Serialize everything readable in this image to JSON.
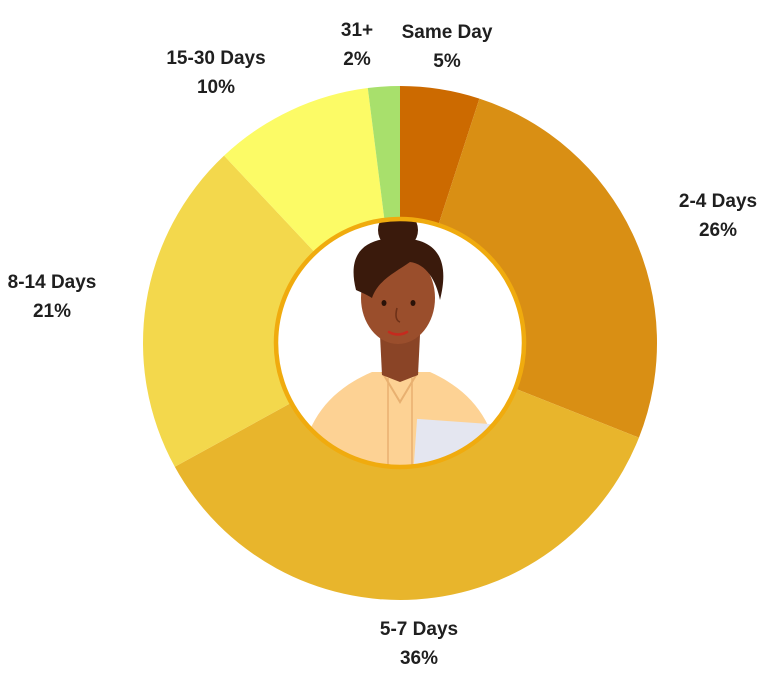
{
  "chart_data": {
    "type": "pie",
    "variant": "donut",
    "title": "",
    "categories": [
      "Same Day",
      "2-4 Days",
      "5-7 Days",
      "8-14 Days",
      "15-30 Days",
      "31+"
    ],
    "values": [
      5,
      26,
      36,
      21,
      10,
      2
    ],
    "value_labels": [
      "5%",
      "26%",
      "36%",
      "21%",
      "10%",
      "2%"
    ],
    "colors": [
      "#cc6a00",
      "#d98f14",
      "#e8b52c",
      "#f3d84c",
      "#fcfb66",
      "#a8e06c"
    ],
    "start": "12 o'clock, clockwise",
    "legend": "none (labels outside slices)",
    "center_image": "person-illustration"
  }
}
